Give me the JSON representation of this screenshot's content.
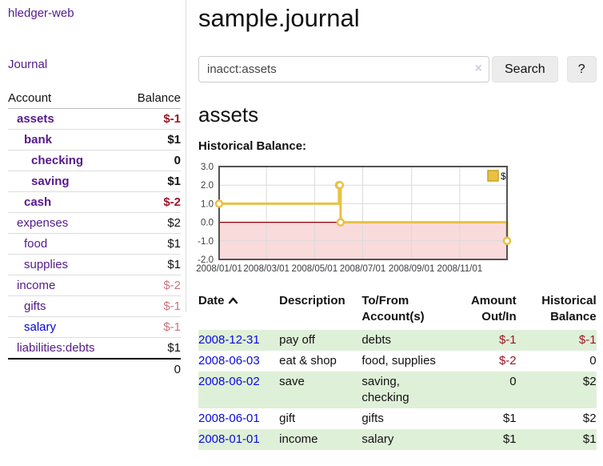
{
  "sidebar": {
    "brand": "hledger-web",
    "nav_journal": "Journal",
    "accounts_table": {
      "account_header": "Account",
      "balance_header": "Balance",
      "rows": [
        {
          "name": "assets",
          "depth": 1,
          "bold": true,
          "balance": "$-1",
          "tone": "neg"
        },
        {
          "name": "bank",
          "depth": 2,
          "bold": true,
          "balance": "$1",
          "tone": "pos"
        },
        {
          "name": "checking",
          "depth": 3,
          "bold": true,
          "balance": "0",
          "tone": "pos"
        },
        {
          "name": "saving",
          "depth": 3,
          "bold": true,
          "balance": "$1",
          "tone": "pos"
        },
        {
          "name": "cash",
          "depth": 2,
          "bold": true,
          "balance": "$-2",
          "tone": "neg"
        },
        {
          "name": "expenses",
          "depth": 1,
          "bold": false,
          "balance": "$2",
          "tone": "pos"
        },
        {
          "name": "food",
          "depth": 2,
          "bold": false,
          "balance": "$1",
          "tone": "pos"
        },
        {
          "name": "supplies",
          "depth": 2,
          "bold": false,
          "balance": "$1",
          "tone": "pos"
        },
        {
          "name": "income",
          "depth": 1,
          "bold": false,
          "balance": "$-2",
          "tone": "soft"
        },
        {
          "name": "gifts",
          "depth": 2,
          "bold": false,
          "balance": "$-1",
          "tone": "soft"
        },
        {
          "name": "salary",
          "depth": 2,
          "bold": false,
          "balance": "$-1",
          "tone": "soft",
          "link_style": "blue"
        },
        {
          "name": "liabilities:debts",
          "depth": 1,
          "bold": false,
          "balance": "$1",
          "tone": "pos"
        }
      ],
      "total": "0"
    }
  },
  "header": {
    "title": "sample.journal"
  },
  "search": {
    "query": "inacct:assets",
    "clear_icon": "×",
    "button": "Search",
    "help_button": "?"
  },
  "account_page": {
    "heading": "assets",
    "chart_title": "Historical Balance:"
  },
  "chart_data": {
    "type": "line",
    "step": true,
    "title": "Historical Balance",
    "series": [
      {
        "name": "$",
        "color": "#e9c143",
        "points": [
          {
            "date": "2008-01-01",
            "value": 1
          },
          {
            "date": "2008-06-01",
            "value": 2
          },
          {
            "date": "2008-06-02",
            "value": 2
          },
          {
            "date": "2008-06-03",
            "value": 0
          },
          {
            "date": "2008-12-31",
            "value": -1
          }
        ]
      }
    ],
    "x_range": [
      "2008-01-01",
      "2008-12-31"
    ],
    "x_ticks": [
      {
        "date": "2008-01-01",
        "label": "2008/01/01"
      },
      {
        "date": "2008-03-01",
        "label": "2008/03/01"
      },
      {
        "date": "2008-05-01",
        "label": "2008/05/01"
      },
      {
        "date": "2008-07-01",
        "label": "2008/07/01"
      },
      {
        "date": "2008-09-01",
        "label": "2008/09/01"
      },
      {
        "date": "2008-11-01",
        "label": "2008/11/01"
      }
    ],
    "y_ticks": [
      {
        "value": 3,
        "label": "3.0"
      },
      {
        "value": 2,
        "label": "2.0"
      },
      {
        "value": 1,
        "label": "1.0"
      },
      {
        "value": 0,
        "label": "0.0"
      },
      {
        "value": -1,
        "label": "-1.0"
      },
      {
        "value": -2,
        "label": "-2.0"
      }
    ],
    "ylim": [
      -2,
      3
    ],
    "grid": true,
    "legend_position": "top-right",
    "zero_line_color": "#8b0006",
    "below_zero_fill": "#f9dbdc",
    "grid_color": "#dadada",
    "border_color": "#545454"
  },
  "transactions": {
    "headers": {
      "date": "Date",
      "description": "Description",
      "tofrom": "To/From Account(s)",
      "amount": "Amount Out/In",
      "historical": "Historical Balance"
    },
    "sort_icon": "chevron-up",
    "rows": [
      {
        "date": "2008-12-31",
        "description": "pay off",
        "accounts": "debts",
        "amount": "$-1",
        "historical": "$-1"
      },
      {
        "date": "2008-06-03",
        "description": "eat & shop",
        "accounts": "food, supplies",
        "amount": "$-2",
        "historical": "0"
      },
      {
        "date": "2008-06-02",
        "description": "save",
        "accounts": "saving, checking",
        "amount": "0",
        "historical": "$2"
      },
      {
        "date": "2008-06-01",
        "description": "gift",
        "accounts": "gifts",
        "amount": "$1",
        "historical": "$2"
      },
      {
        "date": "2008-01-01",
        "description": "income",
        "accounts": "salary",
        "amount": "$1",
        "historical": "$1"
      }
    ]
  },
  "colors": {
    "link_purple": "#551a8b",
    "link_blue": "#0a0ae0",
    "negative_red": "#9d1627",
    "soft_red": "#c5767f",
    "row_green": "#dff0d8",
    "series_gold": "#e9c143"
  }
}
